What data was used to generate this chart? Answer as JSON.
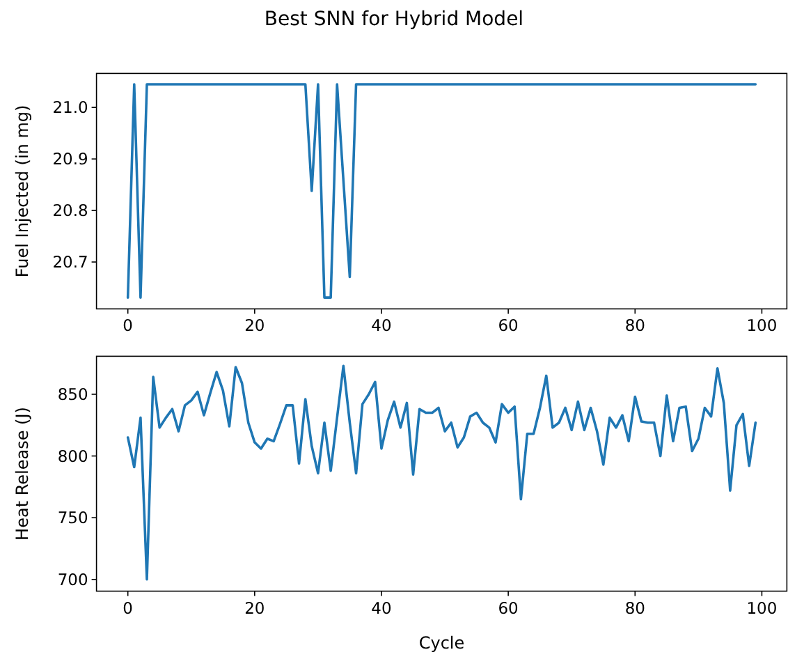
{
  "chart_data": [
    {
      "type": "line",
      "title": "Best SNN for Hybrid Model",
      "ylabel": "Fuel Injected (in mg)",
      "x": [
        0,
        1,
        2,
        3,
        4,
        5,
        6,
        7,
        8,
        9,
        10,
        11,
        12,
        13,
        14,
        15,
        16,
        17,
        18,
        19,
        20,
        21,
        22,
        23,
        24,
        25,
        26,
        27,
        28,
        29,
        30,
        31,
        32,
        33,
        34,
        35,
        36,
        37,
        38,
        39,
        40,
        41,
        42,
        43,
        44,
        45,
        46,
        47,
        48,
        49,
        50,
        51,
        52,
        53,
        54,
        55,
        56,
        57,
        58,
        59,
        60,
        61,
        62,
        63,
        64,
        65,
        66,
        67,
        68,
        69,
        70,
        71,
        72,
        73,
        74,
        75,
        76,
        77,
        78,
        79,
        80,
        81,
        82,
        83,
        84,
        85,
        86,
        87,
        88,
        89,
        90,
        91,
        92,
        93,
        94,
        95,
        96,
        97,
        98,
        99
      ],
      "series": [
        {
          "color": "#1f77b4",
          "values": [
            20.631,
            21.045,
            20.631,
            21.045,
            21.045,
            21.045,
            21.045,
            21.045,
            21.045,
            21.045,
            21.045,
            21.045,
            21.045,
            21.045,
            21.045,
            21.045,
            21.045,
            21.045,
            21.045,
            21.045,
            21.045,
            21.045,
            21.045,
            21.045,
            21.045,
            21.045,
            21.045,
            21.045,
            21.045,
            20.838,
            21.045,
            20.631,
            20.631,
            21.045,
            20.858,
            20.671,
            21.045,
            21.045,
            21.045,
            21.045,
            21.045,
            21.045,
            21.045,
            21.045,
            21.045,
            21.045,
            21.045,
            21.045,
            21.045,
            21.045,
            21.045,
            21.045,
            21.045,
            21.045,
            21.045,
            21.045,
            21.045,
            21.045,
            21.045,
            21.045,
            21.045,
            21.045,
            21.045,
            21.045,
            21.045,
            21.045,
            21.045,
            21.045,
            21.045,
            21.045,
            21.045,
            21.045,
            21.045,
            21.045,
            21.045,
            21.045,
            21.045,
            21.045,
            21.045,
            21.045,
            21.045,
            21.045,
            21.045,
            21.045,
            21.045,
            21.045,
            21.045,
            21.045,
            21.045,
            21.045,
            21.045,
            21.045,
            21.045,
            21.045,
            21.045,
            21.045,
            21.045,
            21.045,
            21.045,
            21.045
          ]
        }
      ],
      "xlim": [
        -4.95,
        103.95
      ],
      "xticks": [
        0,
        20,
        40,
        60,
        80,
        100
      ],
      "ylim": [
        20.609,
        21.066
      ],
      "yticks": [
        {
          "value": 20.7,
          "label": "20.7"
        },
        {
          "value": 20.8,
          "label": "20.8"
        },
        {
          "value": 20.9,
          "label": "20.9"
        },
        {
          "value": 21.0,
          "label": "21.0"
        }
      ],
      "grid": false,
      "line_style": "solid",
      "marker": "none"
    },
    {
      "type": "line",
      "xlabel": "Cycle",
      "ylabel": "Heat Release (J)",
      "x": [
        0,
        1,
        2,
        3,
        4,
        5,
        6,
        7,
        8,
        9,
        10,
        11,
        12,
        13,
        14,
        15,
        16,
        17,
        18,
        19,
        20,
        21,
        22,
        23,
        24,
        25,
        26,
        27,
        28,
        29,
        30,
        31,
        32,
        33,
        34,
        35,
        36,
        37,
        38,
        39,
        40,
        41,
        42,
        43,
        44,
        45,
        46,
        47,
        48,
        49,
        50,
        51,
        52,
        53,
        54,
        55,
        56,
        57,
        58,
        59,
        60,
        61,
        62,
        63,
        64,
        65,
        66,
        67,
        68,
        69,
        70,
        71,
        72,
        73,
        74,
        75,
        76,
        77,
        78,
        79,
        80,
        81,
        82,
        83,
        84,
        85,
        86,
        87,
        88,
        89,
        90,
        91,
        92,
        93,
        94,
        95,
        96,
        97,
        98,
        99
      ],
      "series": [
        {
          "color": "#1f77b4",
          "values": [
            815,
            791,
            831,
            700,
            864,
            823,
            831,
            838,
            820,
            841,
            845,
            852,
            833,
            851,
            868,
            853,
            824,
            872,
            859,
            827,
            811,
            806,
            814,
            812,
            826,
            841,
            841,
            794,
            846,
            808,
            786,
            827,
            788,
            831,
            873,
            827,
            786,
            842,
            850,
            860,
            806,
            829,
            844,
            823,
            843,
            785,
            838,
            835,
            835,
            839,
            820,
            827,
            807,
            815,
            832,
            835,
            827,
            823,
            811,
            842,
            835,
            840,
            765,
            818,
            818,
            839,
            865,
            823,
            827,
            839,
            821,
            844,
            821,
            839,
            820,
            793,
            831,
            823,
            833,
            812,
            848,
            828,
            827,
            827,
            800,
            849,
            812,
            839,
            840,
            804,
            814,
            839,
            832,
            871,
            843,
            772,
            825,
            834,
            792,
            827
          ]
        }
      ],
      "xlim": [
        -4.95,
        103.95
      ],
      "xticks": [
        0,
        20,
        40,
        60,
        80,
        100
      ],
      "ylim": [
        690.5,
        880.8
      ],
      "yticks": [
        700,
        750,
        800,
        850
      ],
      "grid": false,
      "line_style": "solid",
      "marker": "none"
    }
  ]
}
